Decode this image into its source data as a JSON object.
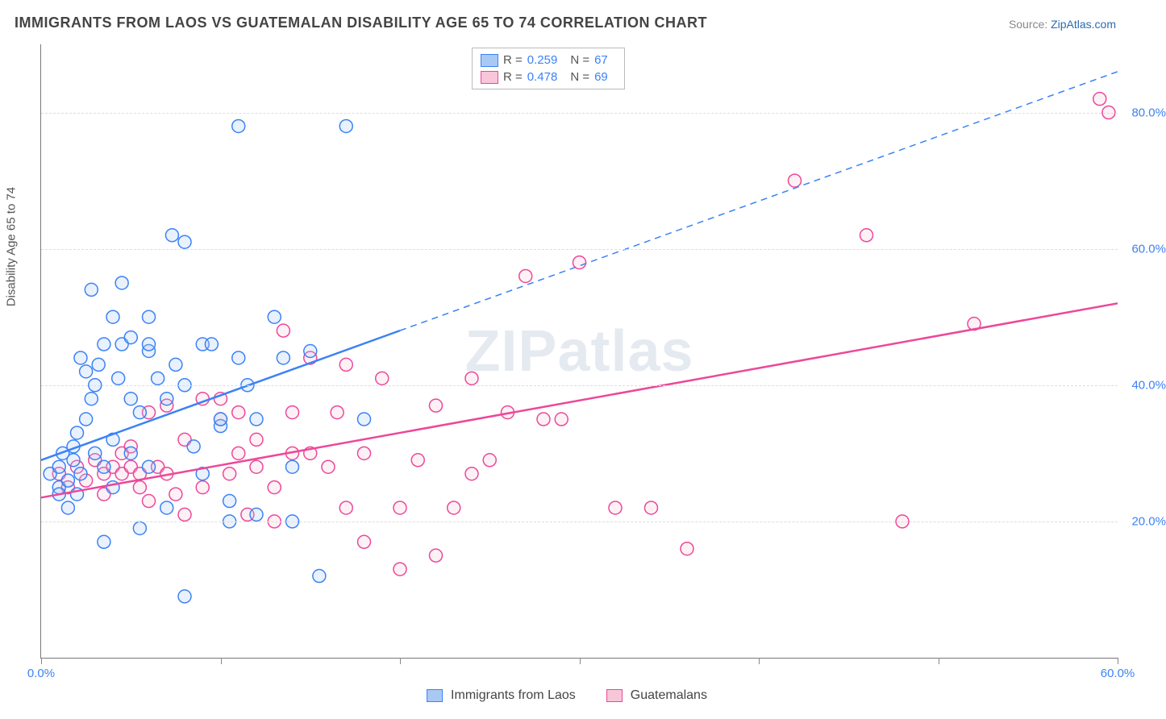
{
  "title": "IMMIGRANTS FROM LAOS VS GUATEMALAN DISABILITY AGE 65 TO 74 CORRELATION CHART",
  "source": {
    "label": "Source:",
    "value": "ZipAtlas.com"
  },
  "y_axis_label": "Disability Age 65 to 74",
  "watermark": {
    "bold": "ZIP",
    "rest": "atlas"
  },
  "chart": {
    "type": "scatter",
    "xlim": [
      0,
      60
    ],
    "ylim": [
      0,
      90
    ],
    "x_ticks": [
      0,
      10,
      20,
      30,
      40,
      50,
      60
    ],
    "x_tick_labels": {
      "0": "0.0%",
      "60": "60.0%"
    },
    "y_grid": [
      20,
      40,
      60,
      80
    ],
    "y_tick_labels": {
      "20": "20.0%",
      "40": "40.0%",
      "60": "60.0%",
      "80": "80.0%"
    },
    "background_color": "#ffffff",
    "grid_color": "#dddddd",
    "axis_color": "#777777",
    "marker_radius": 8,
    "marker_stroke_width": 1.5,
    "marker_fill_opacity": 0.25
  },
  "series": {
    "laos": {
      "label": "Immigrants from Laos",
      "color": "#3b82f6",
      "fill": "#a9c9f5",
      "R": "0.259",
      "N": "67",
      "trend": {
        "x1": 0,
        "y1": 29,
        "x2_solid": 20,
        "y2_solid": 48,
        "x2_dash": 60,
        "y2_dash": 86,
        "width": 2.5
      },
      "points": [
        [
          0.5,
          27
        ],
        [
          1,
          28
        ],
        [
          1,
          25
        ],
        [
          1,
          24
        ],
        [
          1.2,
          30
        ],
        [
          1.5,
          26
        ],
        [
          1.5,
          22
        ],
        [
          1.8,
          29
        ],
        [
          1.8,
          31
        ],
        [
          2,
          24
        ],
        [
          2,
          33
        ],
        [
          2.2,
          27
        ],
        [
          2.2,
          44
        ],
        [
          2.5,
          35
        ],
        [
          2.5,
          42
        ],
        [
          2.8,
          38
        ],
        [
          2.8,
          54
        ],
        [
          3,
          40
        ],
        [
          3,
          30
        ],
        [
          3.2,
          43
        ],
        [
          3.5,
          46
        ],
        [
          3.5,
          28
        ],
        [
          3.5,
          17
        ],
        [
          4,
          50
        ],
        [
          4,
          32
        ],
        [
          4,
          25
        ],
        [
          4.3,
          41
        ],
        [
          4.5,
          46
        ],
        [
          4.5,
          55
        ],
        [
          5,
          30
        ],
        [
          5,
          38
        ],
        [
          5,
          47
        ],
        [
          5.5,
          36
        ],
        [
          5.5,
          19
        ],
        [
          6,
          45
        ],
        [
          6,
          28
        ],
        [
          6,
          46
        ],
        [
          6,
          50
        ],
        [
          6.5,
          41
        ],
        [
          7,
          38
        ],
        [
          7,
          22
        ],
        [
          7.3,
          62
        ],
        [
          7.5,
          43
        ],
        [
          8,
          40
        ],
        [
          8,
          61
        ],
        [
          8,
          9
        ],
        [
          8.5,
          31
        ],
        [
          9,
          27
        ],
        [
          9,
          46
        ],
        [
          9.5,
          46
        ],
        [
          10,
          34
        ],
        [
          10,
          35
        ],
        [
          10.5,
          23
        ],
        [
          10.5,
          20
        ],
        [
          11,
          44
        ],
        [
          11,
          78
        ],
        [
          11.5,
          40
        ],
        [
          12,
          35
        ],
        [
          12,
          21
        ],
        [
          13,
          50
        ],
        [
          13.5,
          44
        ],
        [
          14,
          28
        ],
        [
          14,
          20
        ],
        [
          15,
          45
        ],
        [
          15.5,
          12
        ],
        [
          17,
          78
        ],
        [
          18,
          35
        ]
      ]
    },
    "guatemalans": {
      "label": "Guatemalans",
      "color": "#ec4899",
      "fill": "#f7c6d9",
      "R": "0.478",
      "N": "69",
      "trend": {
        "x1": 0,
        "y1": 23.5,
        "x2_solid": 60,
        "y2_solid": 52,
        "width": 2.5
      },
      "points": [
        [
          1,
          27
        ],
        [
          1.5,
          25
        ],
        [
          2,
          28
        ],
        [
          2.5,
          26
        ],
        [
          3,
          29
        ],
        [
          3.5,
          24
        ],
        [
          3.5,
          27
        ],
        [
          4,
          28
        ],
        [
          4.5,
          30
        ],
        [
          4.5,
          27
        ],
        [
          5,
          31
        ],
        [
          5,
          28
        ],
        [
          5.5,
          27
        ],
        [
          5.5,
          25
        ],
        [
          6,
          23
        ],
        [
          6,
          36
        ],
        [
          6.5,
          28
        ],
        [
          7,
          27
        ],
        [
          7,
          37
        ],
        [
          7.5,
          24
        ],
        [
          8,
          32
        ],
        [
          8,
          21
        ],
        [
          9,
          25
        ],
        [
          9,
          38
        ],
        [
          10,
          38
        ],
        [
          10,
          35
        ],
        [
          10.5,
          27
        ],
        [
          11,
          30
        ],
        [
          11,
          36
        ],
        [
          11.5,
          21
        ],
        [
          12,
          32
        ],
        [
          12,
          28
        ],
        [
          13,
          20
        ],
        [
          13,
          25
        ],
        [
          13.5,
          48
        ],
        [
          14,
          36
        ],
        [
          14,
          30
        ],
        [
          15,
          30
        ],
        [
          15,
          44
        ],
        [
          16,
          28
        ],
        [
          16.5,
          36
        ],
        [
          17,
          43
        ],
        [
          17,
          22
        ],
        [
          18,
          30
        ],
        [
          18,
          17
        ],
        [
          19,
          41
        ],
        [
          20,
          22
        ],
        [
          20,
          13
        ],
        [
          21,
          29
        ],
        [
          22,
          37
        ],
        [
          22,
          15
        ],
        [
          23,
          22
        ],
        [
          24,
          41
        ],
        [
          24,
          27
        ],
        [
          25,
          29
        ],
        [
          26,
          36
        ],
        [
          27,
          56
        ],
        [
          28,
          35
        ],
        [
          29,
          35
        ],
        [
          30,
          58
        ],
        [
          32,
          22
        ],
        [
          34,
          22
        ],
        [
          36,
          16
        ],
        [
          42,
          70
        ],
        [
          46,
          62
        ],
        [
          48,
          20
        ],
        [
          52,
          49
        ],
        [
          59,
          82
        ],
        [
          59.5,
          80
        ]
      ]
    }
  },
  "legend_top": {
    "R_label": "R =",
    "N_label": "N ="
  },
  "title_fontsize": 18,
  "label_fontsize": 15,
  "tick_fontsize": 15,
  "tick_color": "#3b82f6"
}
